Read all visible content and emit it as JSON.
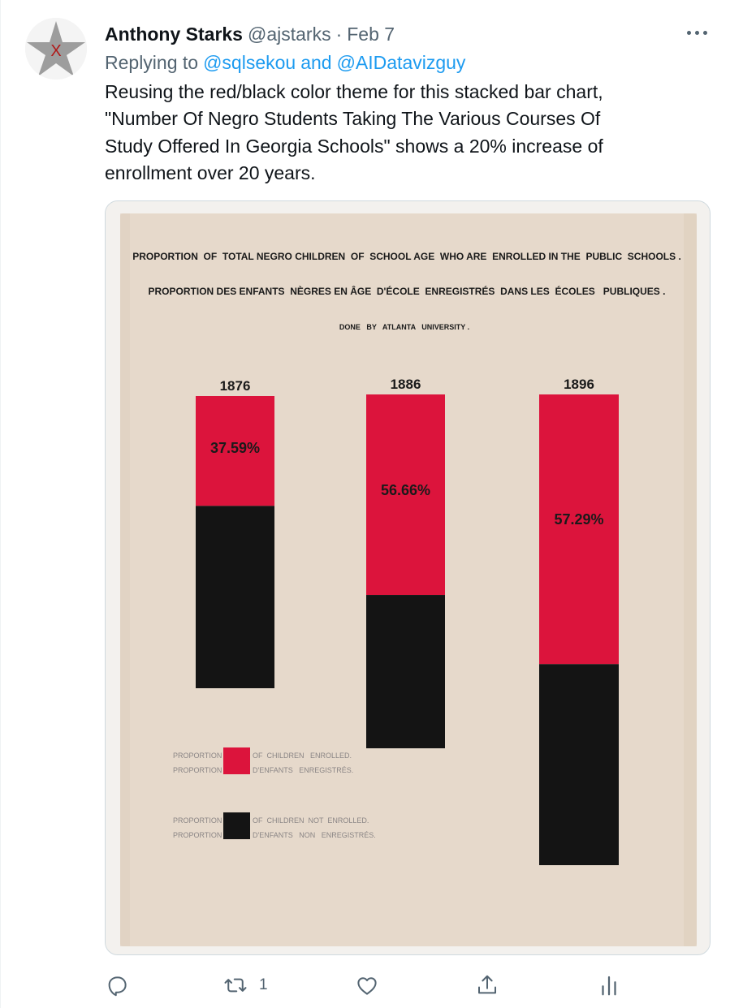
{
  "tweet": {
    "author_name": "Anthony Starks",
    "author_handle": "@ajstarks",
    "separator": "·",
    "date": "Feb 7",
    "replying_prefix": "Replying to",
    "replying_user1": "@sqlsekou",
    "replying_and": "and",
    "replying_user2": "@AIDatavizguy",
    "text_lines": [
      "Reusing the red/black color theme for this stacked bar chart,",
      "\"Number Of Negro Students Taking The Various Courses Of",
      "Study Offered In Georgia Schools\" shows a 20% increase of",
      "enrollment over 20 years."
    ],
    "avatar_letter": "X",
    "actions": {
      "reply_icon": "reply-icon",
      "retweet_icon": "retweet-icon",
      "retweet_count": "1",
      "like_icon": "heart-icon",
      "share_icon": "share-icon",
      "analytics_icon": "analytics-icon"
    },
    "more_icon": "more-dots-icon"
  },
  "image": {
    "title_en": "PROPORTION  OF  TOTAL NEGRO CHILDREN  OF  SCHOOL AGE  WHO ARE  ENROLLED IN THE  PUBLIC  SCHOOLS .",
    "title_fr": "PROPORTION DES ENFANTS  NÈGRES EN ÂGE  D'ÉCOLE  ENREGISTRÉS  DANS LES  ÉCOLES   PUBLIQUES .",
    "credit": "DONE   BY   ATLANTA   UNIVERSITY .",
    "legend": {
      "enrolled_left_1": "PROPORTION",
      "enrolled_left_2": "PROPORTION",
      "enrolled_right_1": "OF  CHILDREN   ENROLLED.",
      "enrolled_right_2": "D'ENFANTS   ENREGISTRÉS.",
      "not_left_1": "PROPORTION",
      "not_left_2": "PROPORTION",
      "not_right_1": "OF  CHILDREN  NOT  ENROLLED.",
      "not_right_2": "D'ENFANTS   NON   ENREGISTRÉS."
    },
    "colors": {
      "enrolled": "#dc143c",
      "not_enrolled": "#141414",
      "paper": "#e6d9cb",
      "border": "#efece7"
    }
  },
  "chart_data": {
    "type": "bar",
    "categories": [
      "1876",
      "1886",
      "1896"
    ],
    "series": [
      {
        "name": "PROPORTION OF CHILDREN ENROLLED.",
        "values": [
          37.59,
          56.66,
          57.29
        ]
      },
      {
        "name": "PROPORTION OF CHILDREN NOT ENROLLED.",
        "values": [
          62.41,
          43.34,
          42.71
        ]
      }
    ],
    "data_labels": [
      "37.59%",
      "56.66%",
      "57.29%"
    ],
    "stacked": true
  }
}
